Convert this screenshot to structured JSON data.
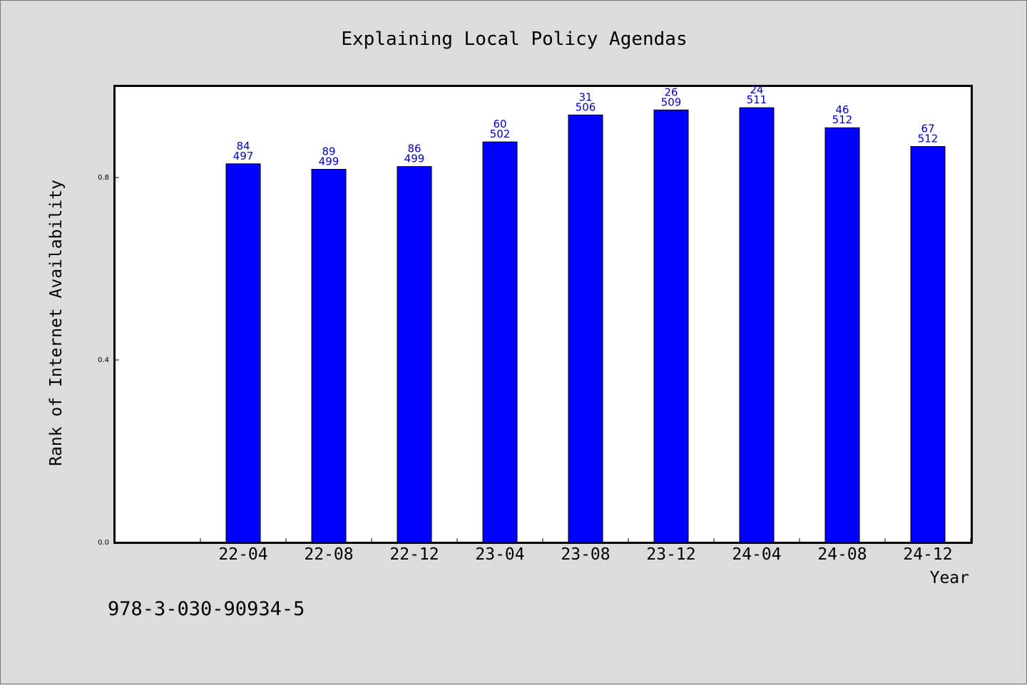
{
  "chart_data": {
    "type": "bar",
    "title": "Explaining Local Policy Agendas",
    "xlabel": "Year",
    "ylabel": "Rank of Internet Availability",
    "categories": [
      "22-04",
      "22-08",
      "22-12",
      "23-04",
      "23-08",
      "23-12",
      "24-04",
      "24-08",
      "24-12"
    ],
    "values": [
      0.83,
      0.818,
      0.824,
      0.878,
      0.937,
      0.948,
      0.953,
      0.909,
      0.868
    ],
    "bar_labels_top": [
      "84",
      "89",
      "86",
      "60",
      "31",
      "26",
      "24",
      "46",
      "67"
    ],
    "bar_labels_bottom": [
      "497",
      "499",
      "499",
      "502",
      "506",
      "509",
      "511",
      "512",
      "512"
    ],
    "yticks": [
      "0.0",
      "0.4",
      "0.8"
    ],
    "ylim": [
      0,
      1.0
    ],
    "grid": false,
    "bar_color": "#0000ff",
    "label_color": "#0000cc"
  },
  "footer": {
    "isbn": "978-3-030-90934-5"
  }
}
